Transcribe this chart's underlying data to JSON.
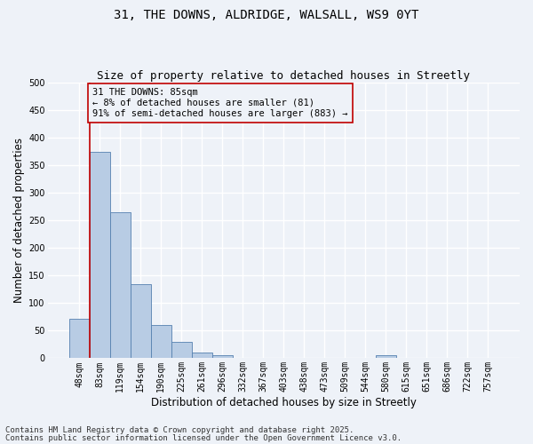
{
  "title_line1": "31, THE DOWNS, ALDRIDGE, WALSALL, WS9 0YT",
  "title_line2": "Size of property relative to detached houses in Streetly",
  "xlabel": "Distribution of detached houses by size in Streetly",
  "ylabel": "Number of detached properties",
  "categories": [
    "48sqm",
    "83sqm",
    "119sqm",
    "154sqm",
    "190sqm",
    "225sqm",
    "261sqm",
    "296sqm",
    "332sqm",
    "367sqm",
    "403sqm",
    "438sqm",
    "473sqm",
    "509sqm",
    "544sqm",
    "580sqm",
    "615sqm",
    "651sqm",
    "686sqm",
    "722sqm",
    "757sqm"
  ],
  "values": [
    72,
    375,
    265,
    135,
    60,
    30,
    10,
    5,
    0,
    0,
    0,
    0,
    0,
    0,
    0,
    5,
    0,
    0,
    0,
    0,
    0
  ],
  "bar_color": "#b8cce4",
  "bar_edge_color": "#5580b0",
  "vline_color": "#c00000",
  "vline_x_index": 1,
  "annotation_box_text": "31 THE DOWNS: 85sqm\n← 8% of detached houses are smaller (81)\n91% of semi-detached houses are larger (883) →",
  "ylim": [
    0,
    500
  ],
  "yticks": [
    0,
    50,
    100,
    150,
    200,
    250,
    300,
    350,
    400,
    450,
    500
  ],
  "footer_line1": "Contains HM Land Registry data © Crown copyright and database right 2025.",
  "footer_line2": "Contains public sector information licensed under the Open Government Licence v3.0.",
  "bg_color": "#eef2f8",
  "grid_color": "#ffffff",
  "title_fontsize": 10,
  "subtitle_fontsize": 9,
  "axis_label_fontsize": 8.5,
  "tick_fontsize": 7,
  "annotation_fontsize": 7.5,
  "footer_fontsize": 6.5
}
